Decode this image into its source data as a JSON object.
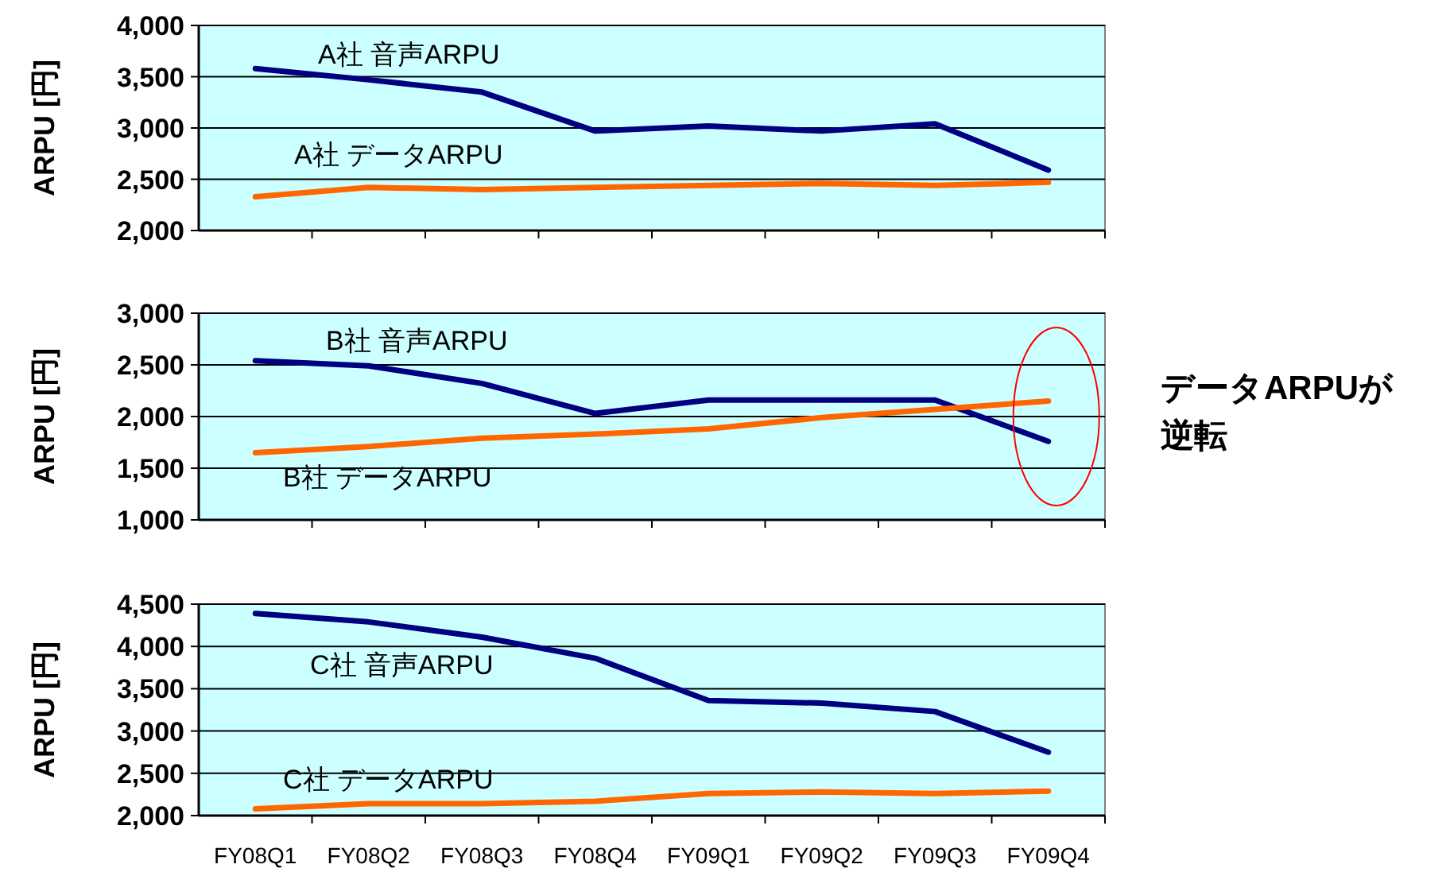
{
  "chart_data": [
    {
      "type": "line",
      "ylabel": "ARPU [円]",
      "categories": [
        null,
        null,
        null,
        null,
        null,
        null,
        null,
        null
      ],
      "ylim": [
        2000,
        4000
      ],
      "yticks": [
        {
          "value": 2000,
          "label": "2,000"
        },
        {
          "value": 2500,
          "label": "2,500"
        },
        {
          "value": 3000,
          "label": "3,000"
        },
        {
          "value": 3500,
          "label": "3,500"
        },
        {
          "value": 4000,
          "label": "4,000"
        }
      ],
      "grid": "y",
      "series": [
        {
          "name": "A社 音声ARPU",
          "color": "#000080",
          "values": [
            3580,
            3470,
            3350,
            2970,
            3020,
            2970,
            3040,
            2590
          ]
        },
        {
          "name": "A社 データARPU",
          "color": "#ff6600",
          "values": [
            2330,
            2420,
            2400,
            2420,
            2440,
            2460,
            2440,
            2470
          ]
        }
      ]
    },
    {
      "type": "line",
      "ylabel": "ARPU [円]",
      "categories": [
        null,
        null,
        null,
        null,
        null,
        null,
        null,
        null
      ],
      "ylim": [
        1000,
        3000
      ],
      "yticks": [
        {
          "value": 1000,
          "label": "1,000"
        },
        {
          "value": 1500,
          "label": "1,500"
        },
        {
          "value": 2000,
          "label": "2,000"
        },
        {
          "value": 2500,
          "label": "2,500"
        },
        {
          "value": 3000,
          "label": "3,000"
        }
      ],
      "grid": "y",
      "series": [
        {
          "name": "B社 音声ARPU",
          "color": "#000080",
          "values": [
            2540,
            2490,
            2320,
            2030,
            2160,
            2160,
            2160,
            1760
          ]
        },
        {
          "name": "B社 データARPU",
          "color": "#ff6600",
          "values": [
            1650,
            1710,
            1790,
            1830,
            1880,
            1990,
            2070,
            2150
          ]
        }
      ],
      "annotations": [
        "データARPUが逆転"
      ]
    },
    {
      "type": "line",
      "ylabel": "ARPU [円]",
      "categories": [
        "FY08Q1",
        "FY08Q2",
        "FY08Q3",
        "FY08Q4",
        "FY09Q1",
        "FY09Q2",
        "FY09Q3",
        "FY09Q4"
      ],
      "ylim": [
        2000,
        4500
      ],
      "yticks": [
        {
          "value": 2000,
          "label": "2,000"
        },
        {
          "value": 2500,
          "label": "2,500"
        },
        {
          "value": 3000,
          "label": "3,000"
        },
        {
          "value": 3500,
          "label": "3,500"
        },
        {
          "value": 4000,
          "label": "4,000"
        },
        {
          "value": 4500,
          "label": "4,500"
        }
      ],
      "grid": "y",
      "series": [
        {
          "name": "C社 音声ARPU",
          "color": "#000080",
          "values": [
            4390,
            4290,
            4110,
            3860,
            3360,
            3330,
            3230,
            2750
          ]
        },
        {
          "name": "C社 データARPU",
          "color": "#ff6600",
          "values": [
            2080,
            2140,
            2140,
            2170,
            2260,
            2280,
            2260,
            2290
          ]
        }
      ]
    }
  ]
}
